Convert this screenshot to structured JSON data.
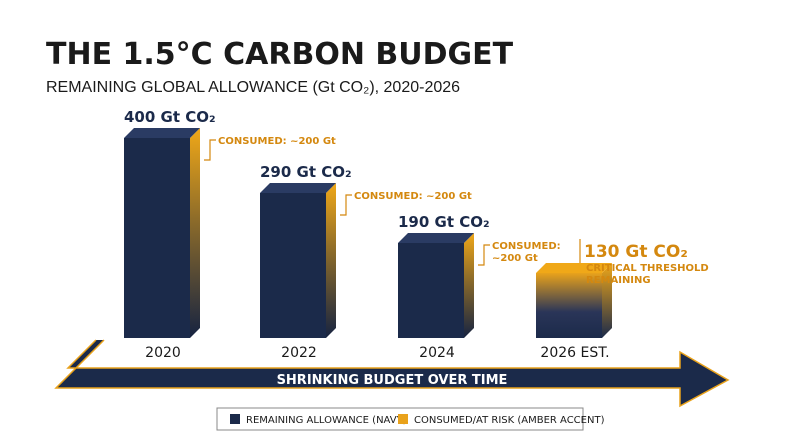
{
  "title": "THE 1.5°C CARBON BUDGET",
  "subtitle": "REMAINING GLOBAL ALLOWANCE (Gt CO₂), 2020-2026",
  "colors": {
    "navy": "#1b2a4a",
    "amber": "#e9a21b",
    "amber_text": "#d4880f",
    "text": "#1a1a1a"
  },
  "chart_data": {
    "type": "bar",
    "categories": [
      "2020",
      "2022",
      "2024",
      "2026 EST."
    ],
    "values": [
      400,
      290,
      190,
      130
    ],
    "value_labels": [
      "400 Gt CO₂",
      "290 Gt CO₂",
      "190 Gt CO₂",
      "130 Gt CO₂"
    ],
    "annotations": [
      {
        "text": [
          "CONSUMED: ~200 Gt"
        ]
      },
      {
        "text": [
          "CONSUMED: ~200 Gt"
        ]
      },
      {
        "text": [
          "CONSUMED:",
          "~200 Gt"
        ]
      },
      {
        "text": [
          "CRITICAL THRESHOLD",
          "REMAINING"
        ]
      }
    ],
    "axis_arrow_label": "SHRINKING BUDGET OVER TIME",
    "legend": [
      "REMAINING ALLOWANCE (NAVY)",
      "CONSUMED/AT RISK (AMBER ACCENT)"
    ],
    "legend_placement": "bottom-center",
    "grid": false
  }
}
